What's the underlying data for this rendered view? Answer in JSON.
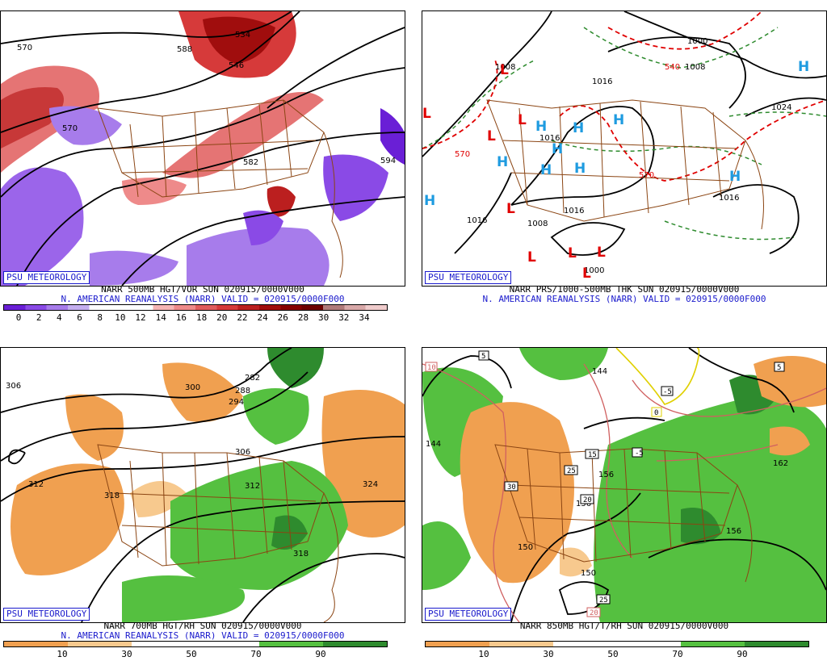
{
  "brand_label": "PSU METEOROLOGY",
  "panels": {
    "tl": {
      "caption_1": "NARR 500MB HGT/VOR SUN 020915/0000V000",
      "caption_2": "N. AMERICAN REANALYSIS (NARR) VALID = 020915/0000F000",
      "legend_ticks": [
        "0",
        "2",
        "4",
        "6",
        "8",
        "10",
        "12",
        "14",
        "16",
        "18",
        "20",
        "22",
        "24",
        "26",
        "28",
        "30",
        "32",
        "34"
      ],
      "legend_colors": [
        "#6a1fd6",
        "#8a4ae6",
        "#a77ceb",
        "#c4aef0",
        "#ffffff",
        "#ffffff",
        "#ffffff",
        "#f6b4b4",
        "#ee8a8a",
        "#e05c5c",
        "#d63a3a",
        "#bb1f1f",
        "#a00d0d",
        "#870000",
        "#6e0000",
        "#b07a7a",
        "#d8a8a8",
        "#f0cccc"
      ],
      "contour_labels": [
        "570",
        "588",
        "546",
        "534",
        "582",
        "594",
        "570"
      ]
    },
    "tr": {
      "caption_1": "NARR PRS/1000-500MB THK SUN 020915/0000V000",
      "caption_2": "N. AMERICAN REANALYSIS (NARR) VALID = 020915/0000F000",
      "contour_labels": [
        "1008",
        "1016",
        "1008",
        "1000",
        "1024",
        "1016",
        "1016",
        "1016",
        "1008",
        "1024",
        "1016",
        "1016",
        "1000"
      ],
      "thickness_labels": [
        "540",
        "570",
        "570"
      ],
      "high_symbol": "H",
      "low_symbol": "L"
    },
    "bl": {
      "caption_1": "NARR 700MB HGT/RH SUN 020915/0000V000",
      "caption_2": "N. AMERICAN REANALYSIS (NARR) VALID = 020915/0000F000",
      "legend_ticks": [
        "10",
        "30",
        "50",
        "70",
        "90"
      ],
      "legend_colors": [
        "#f0a050",
        "#f7c98e",
        "#ffffff",
        "#ffffff",
        "#55c040",
        "#2e8b2e"
      ],
      "contour_labels": [
        "306",
        "300",
        "282",
        "288",
        "294",
        "312",
        "318",
        "306",
        "324",
        "318",
        "312"
      ]
    },
    "br": {
      "caption_1": "NARR 850MB HGT/T/RH SUN 020915/0000V000",
      "legend_ticks": [
        "10",
        "30",
        "50",
        "70",
        "90"
      ],
      "legend_colors": [
        "#f0a050",
        "#f7c98e",
        "#ffffff",
        "#ffffff",
        "#55c040",
        "#2e8b2e"
      ],
      "contour_labels": [
        "144",
        "150",
        "156",
        "156",
        "150",
        "162",
        "156",
        "144"
      ],
      "temperature_labels": [
        "5",
        "10",
        "15",
        "20",
        "25",
        "30",
        "25",
        "20",
        "15",
        "10",
        "5",
        "0",
        "-5",
        "5",
        "10",
        "25",
        "30",
        "20",
        "25"
      ]
    }
  }
}
